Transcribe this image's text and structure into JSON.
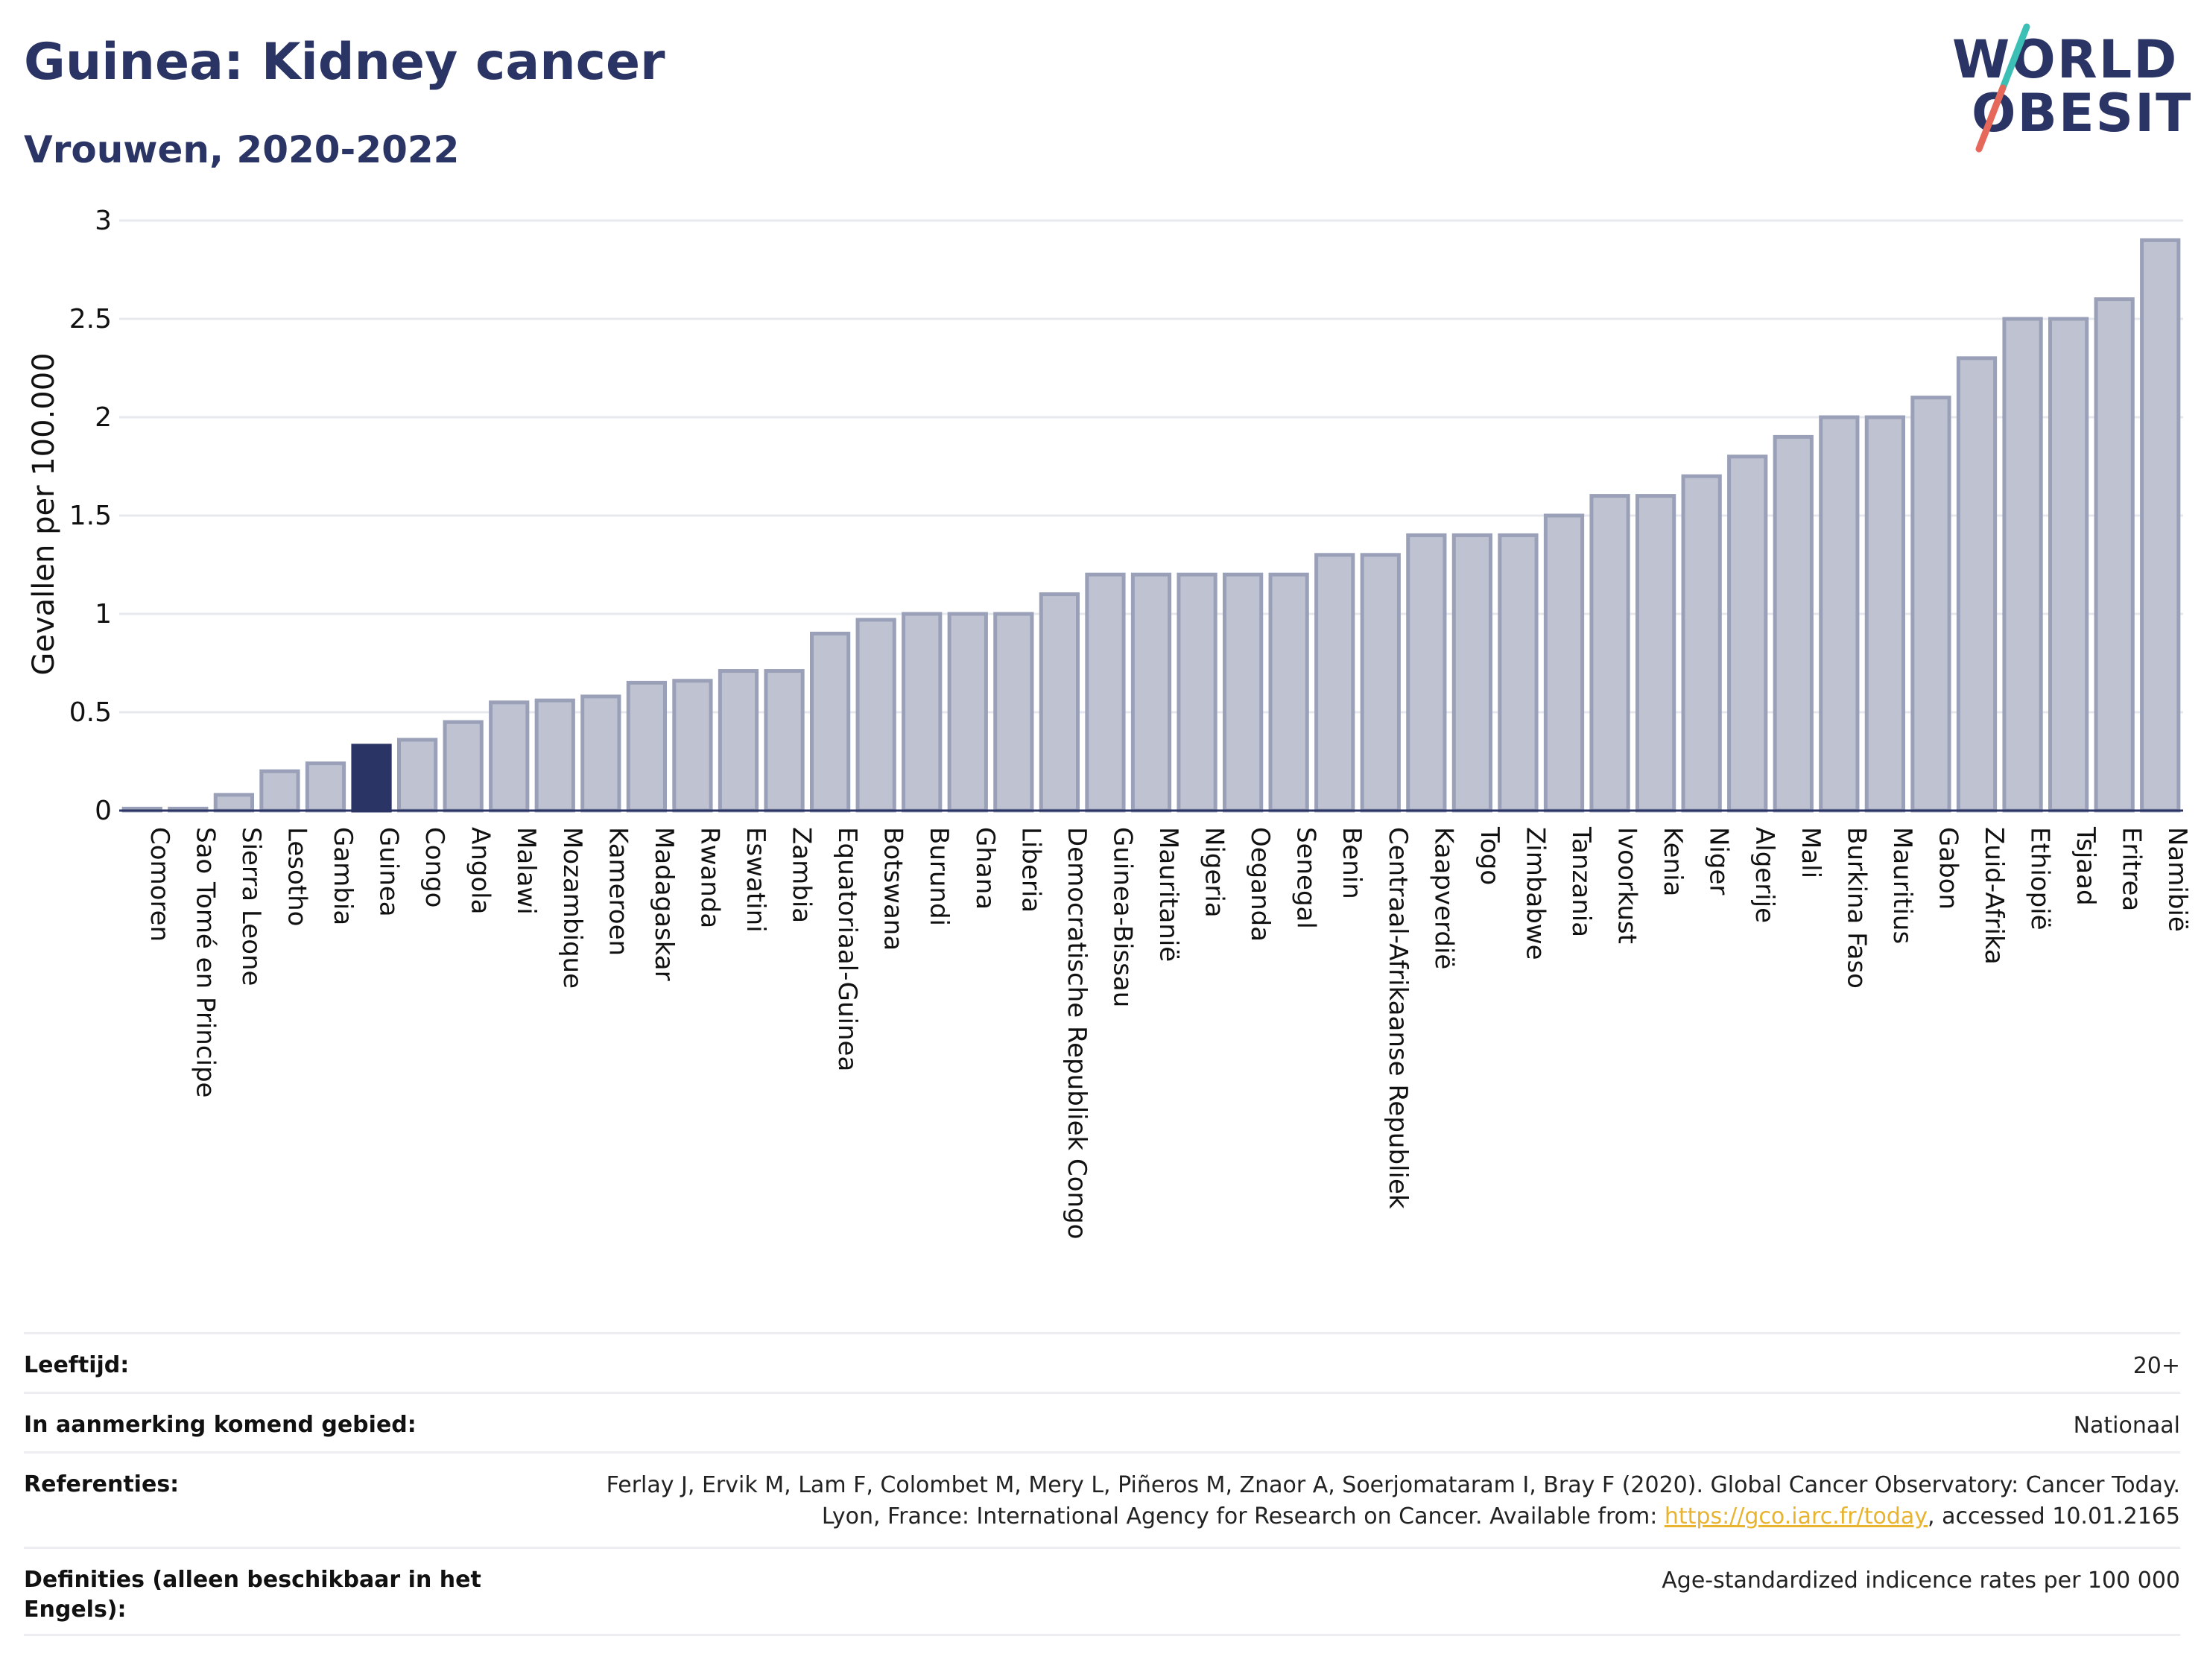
{
  "header": {
    "title": "Guinea: Kidney cancer",
    "subtitle": "Vrouwen, 2020-2022"
  },
  "logo": {
    "line1": "WORLD",
    "line2": "OBESITY",
    "text_color": "#2b3565",
    "slash_top_color": "#3cbfb4",
    "slash_bottom_color": "#e5685a"
  },
  "colors": {
    "bar_fill": "#bfc3d1",
    "bar_stroke": "#9aa0b8",
    "highlight_fill": "#2b3565",
    "grid": "#e6e8ee",
    "axis": "#2b3565"
  },
  "chart_data": {
    "type": "bar",
    "ylabel": "Gevallen per 100.000",
    "ylim": [
      0,
      3
    ],
    "yticks": [
      "0",
      "0.5",
      "1",
      "1.5",
      "2",
      "2.5",
      "3"
    ],
    "grid": true,
    "highlight": "Guinea",
    "categories": [
      "Comoren",
      "Sao Tomé en Principe",
      "Sierra Leone",
      "Lesotho",
      "Gambia",
      "Guinea",
      "Congo",
      "Angola",
      "Malawi",
      "Mozambique",
      "Kameroen",
      "Madagaskar",
      "Rwanda",
      "Eswatini",
      "Zambia",
      "Equatoriaal-Guinea",
      "Botswana",
      "Burundi",
      "Ghana",
      "Liberia",
      "Democratische Republiek Congo",
      "Guinea-Bissau",
      "Mauritanië",
      "Nigeria",
      "Oeganda",
      "Senegal",
      "Benin",
      "Centraal-Afrikaanse Republiek",
      "Kaapverdië",
      "Togo",
      "Zimbabwe",
      "Tanzania",
      "Ivoorkust",
      "Kenia",
      "Niger",
      "Algerije",
      "Mali",
      "Burkina Faso",
      "Mauritius",
      "Gabon",
      "Zuid-Afrika",
      "Ethiopië",
      "Tsjaad",
      "Eritrea",
      "Namibië"
    ],
    "values": [
      0.01,
      0.01,
      0.08,
      0.2,
      0.24,
      0.33,
      0.36,
      0.45,
      0.55,
      0.56,
      0.58,
      0.65,
      0.66,
      0.71,
      0.71,
      0.9,
      0.97,
      1.0,
      1.0,
      1.0,
      1.1,
      1.2,
      1.2,
      1.2,
      1.2,
      1.2,
      1.3,
      1.3,
      1.4,
      1.4,
      1.4,
      1.5,
      1.6,
      1.6,
      1.7,
      1.8,
      1.9,
      2.0,
      2.0,
      2.1,
      2.3,
      2.5,
      2.5,
      2.6,
      2.9
    ]
  },
  "meta": [
    {
      "label": "Leeftijd:",
      "value": "20+"
    },
    {
      "label": "In aanmerking komend gebied:",
      "value": "Nationaal"
    },
    {
      "label": "Referenties:",
      "value_before": "Ferlay J, Ervik M, Lam F, Colombet M, Mery L, Piñeros M, Znaor A, Soerjomataram I, Bray F (2020). Global Cancer Observatory: Cancer Today. Lyon, France: International Agency for Research on Cancer. Available from: ",
      "link": "https://gco.iarc.fr/today",
      "value_after": ", accessed 10.01.2165"
    },
    {
      "label": "Definities (alleen beschikbaar in het Engels):",
      "value": "Age-standardized indicence rates per 100 000"
    }
  ]
}
